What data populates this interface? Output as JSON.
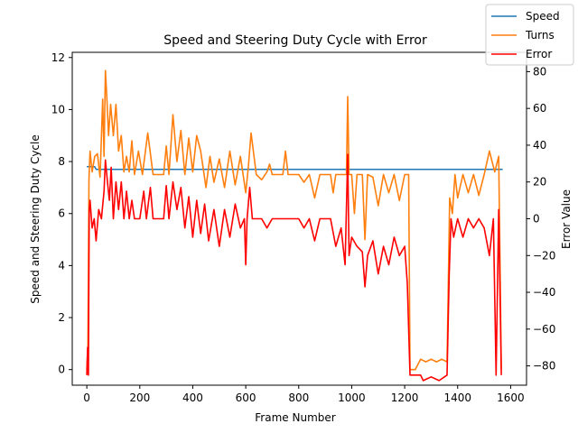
{
  "chart_data": {
    "type": "line",
    "title": "Speed and Steering Duty Cycle with Error",
    "xlabel": "Frame Number",
    "ylabel": "Speed and Steering Duty Cycle",
    "y2label": "Error Value",
    "xlim": [
      -55,
      1660
    ],
    "ylim": [
      -0.6,
      12.2
    ],
    "y2lim": [
      -90.5,
      90.5
    ],
    "xticks": [
      0,
      200,
      400,
      600,
      800,
      1000,
      1200,
      1400,
      1600
    ],
    "yticks": [
      0,
      2,
      4,
      6,
      8,
      10,
      12
    ],
    "y2ticks": [
      -80,
      -60,
      -40,
      -20,
      0,
      20,
      40,
      60,
      80
    ],
    "grid": false,
    "legend_position": "top-right",
    "series": [
      {
        "name": "Speed",
        "axis": "left",
        "color": "#1f77b4",
        "points": [
          [
            0,
            7.8
          ],
          [
            30,
            7.8
          ],
          [
            35,
            7.7
          ],
          [
            1570,
            7.7
          ]
        ]
      },
      {
        "name": "Turns",
        "axis": "left",
        "color": "#ff7f0e",
        "points": [
          [
            0,
            0
          ],
          [
            4,
            0.8
          ],
          [
            8,
            7.3
          ],
          [
            12,
            8.4
          ],
          [
            20,
            7.6
          ],
          [
            30,
            8.2
          ],
          [
            40,
            8.3
          ],
          [
            50,
            7.4
          ],
          [
            60,
            10.4
          ],
          [
            65,
            8.2
          ],
          [
            70,
            11.5
          ],
          [
            75,
            10.6
          ],
          [
            82,
            9.0
          ],
          [
            90,
            10.2
          ],
          [
            100,
            9.0
          ],
          [
            110,
            10.2
          ],
          [
            120,
            8.4
          ],
          [
            130,
            9.0
          ],
          [
            140,
            7.6
          ],
          [
            150,
            8.2
          ],
          [
            160,
            7.6
          ],
          [
            170,
            8.8
          ],
          [
            180,
            7.5
          ],
          [
            195,
            8.4
          ],
          [
            210,
            7.5
          ],
          [
            230,
            9.1
          ],
          [
            250,
            7.5
          ],
          [
            290,
            7.5
          ],
          [
            300,
            8.6
          ],
          [
            310,
            7.5
          ],
          [
            325,
            9.8
          ],
          [
            340,
            8.0
          ],
          [
            355,
            9.2
          ],
          [
            370,
            7.5
          ],
          [
            385,
            8.9
          ],
          [
            400,
            7.6
          ],
          [
            415,
            9.0
          ],
          [
            430,
            8.4
          ],
          [
            450,
            7.0
          ],
          [
            465,
            8.2
          ],
          [
            480,
            7.2
          ],
          [
            500,
            8.1
          ],
          [
            520,
            7.0
          ],
          [
            540,
            8.4
          ],
          [
            560,
            7.1
          ],
          [
            580,
            8.2
          ],
          [
            600,
            6.8
          ],
          [
            610,
            7.8
          ],
          [
            620,
            9.1
          ],
          [
            640,
            7.5
          ],
          [
            660,
            7.3
          ],
          [
            680,
            7.6
          ],
          [
            690,
            7.9
          ],
          [
            700,
            7.5
          ],
          [
            740,
            7.5
          ],
          [
            750,
            8.4
          ],
          [
            760,
            7.5
          ],
          [
            800,
            7.5
          ],
          [
            820,
            7.2
          ],
          [
            840,
            7.5
          ],
          [
            860,
            6.6
          ],
          [
            880,
            7.5
          ],
          [
            920,
            7.5
          ],
          [
            930,
            6.8
          ],
          [
            940,
            7.5
          ],
          [
            980,
            7.5
          ],
          [
            985,
            10.5
          ],
          [
            990,
            7.5
          ],
          [
            1000,
            7.5
          ],
          [
            1010,
            6.0
          ],
          [
            1020,
            7.5
          ],
          [
            1040,
            7.5
          ],
          [
            1050,
            5.0
          ],
          [
            1060,
            7.5
          ],
          [
            1080,
            7.4
          ],
          [
            1100,
            6.3
          ],
          [
            1120,
            7.5
          ],
          [
            1140,
            6.8
          ],
          [
            1160,
            7.5
          ],
          [
            1180,
            6.5
          ],
          [
            1200,
            7.5
          ],
          [
            1215,
            7.5
          ],
          [
            1220,
            0
          ],
          [
            1240,
            0
          ],
          [
            1260,
            0.4
          ],
          [
            1280,
            0.3
          ],
          [
            1300,
            0.4
          ],
          [
            1320,
            0.3
          ],
          [
            1340,
            0.4
          ],
          [
            1360,
            0.3
          ],
          [
            1370,
            6.6
          ],
          [
            1380,
            6.0
          ],
          [
            1390,
            7.5
          ],
          [
            1400,
            6.6
          ],
          [
            1420,
            7.5
          ],
          [
            1440,
            6.8
          ],
          [
            1460,
            7.5
          ],
          [
            1480,
            6.7
          ],
          [
            1500,
            7.5
          ],
          [
            1520,
            8.4
          ],
          [
            1540,
            7.6
          ],
          [
            1555,
            8.2
          ],
          [
            1565,
            0
          ]
        ]
      },
      {
        "name": "Error",
        "axis": "right",
        "color": "#ff0000",
        "points": [
          [
            0,
            -85
          ],
          [
            3,
            -70
          ],
          [
            6,
            -85
          ],
          [
            9,
            5
          ],
          [
            12,
            10
          ],
          [
            20,
            -5
          ],
          [
            28,
            0
          ],
          [
            35,
            -12
          ],
          [
            45,
            5
          ],
          [
            55,
            0
          ],
          [
            65,
            15
          ],
          [
            70,
            32
          ],
          [
            78,
            20
          ],
          [
            85,
            10
          ],
          [
            92,
            28
          ],
          [
            100,
            0
          ],
          [
            110,
            20
          ],
          [
            120,
            5
          ],
          [
            130,
            20
          ],
          [
            140,
            0
          ],
          [
            150,
            15
          ],
          [
            160,
            0
          ],
          [
            170,
            10
          ],
          [
            180,
            0
          ],
          [
            200,
            0
          ],
          [
            215,
            15
          ],
          [
            225,
            0
          ],
          [
            240,
            17
          ],
          [
            250,
            0
          ],
          [
            290,
            0
          ],
          [
            300,
            18
          ],
          [
            310,
            0
          ],
          [
            325,
            20
          ],
          [
            340,
            5
          ],
          [
            355,
            17
          ],
          [
            370,
            -5
          ],
          [
            385,
            12
          ],
          [
            400,
            -10
          ],
          [
            415,
            10
          ],
          [
            430,
            -8
          ],
          [
            445,
            8
          ],
          [
            460,
            -12
          ],
          [
            480,
            5
          ],
          [
            500,
            -15
          ],
          [
            520,
            5
          ],
          [
            540,
            -10
          ],
          [
            560,
            8
          ],
          [
            580,
            -5
          ],
          [
            595,
            0
          ],
          [
            600,
            -25
          ],
          [
            605,
            0
          ],
          [
            615,
            17
          ],
          [
            625,
            0
          ],
          [
            660,
            0
          ],
          [
            680,
            -5
          ],
          [
            700,
            0
          ],
          [
            760,
            0
          ],
          [
            800,
            0
          ],
          [
            820,
            -5
          ],
          [
            840,
            0
          ],
          [
            860,
            -12
          ],
          [
            880,
            0
          ],
          [
            920,
            0
          ],
          [
            940,
            -15
          ],
          [
            960,
            -5
          ],
          [
            975,
            -25
          ],
          [
            985,
            35
          ],
          [
            990,
            -20
          ],
          [
            1000,
            -10
          ],
          [
            1020,
            -15
          ],
          [
            1040,
            -18
          ],
          [
            1050,
            -37
          ],
          [
            1060,
            -20
          ],
          [
            1080,
            -12
          ],
          [
            1100,
            -30
          ],
          [
            1120,
            -15
          ],
          [
            1140,
            -25
          ],
          [
            1160,
            -10
          ],
          [
            1180,
            -20
          ],
          [
            1200,
            -15
          ],
          [
            1210,
            -35
          ],
          [
            1220,
            -85
          ],
          [
            1260,
            -85
          ],
          [
            1270,
            -88
          ],
          [
            1300,
            -86
          ],
          [
            1330,
            -88
          ],
          [
            1360,
            -85
          ],
          [
            1368,
            -30
          ],
          [
            1375,
            0
          ],
          [
            1385,
            -10
          ],
          [
            1400,
            0
          ],
          [
            1420,
            -10
          ],
          [
            1440,
            0
          ],
          [
            1460,
            -5
          ],
          [
            1480,
            0
          ],
          [
            1500,
            -5
          ],
          [
            1520,
            -20
          ],
          [
            1535,
            0
          ],
          [
            1545,
            -85
          ],
          [
            1555,
            5
          ],
          [
            1565,
            -85
          ]
        ]
      }
    ]
  }
}
